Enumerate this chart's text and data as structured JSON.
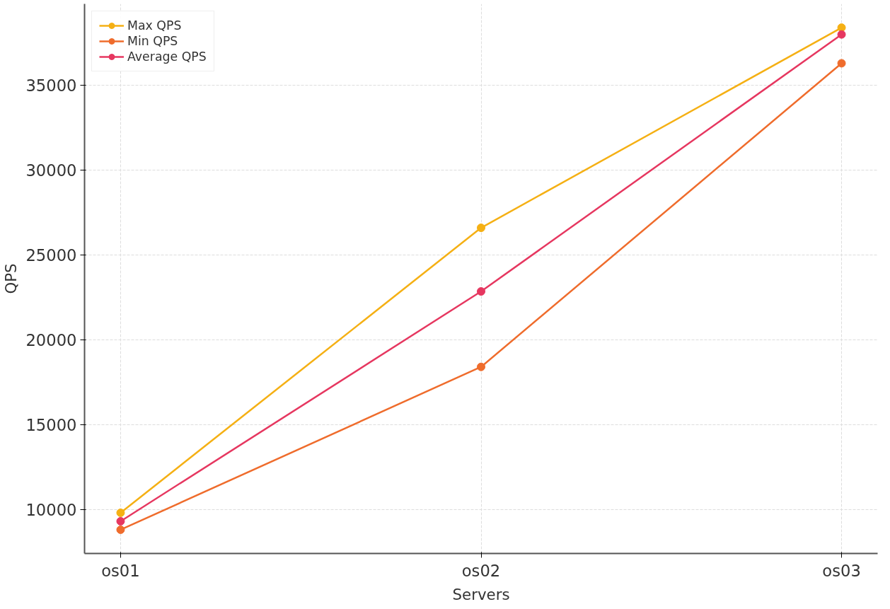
{
  "chart_data": {
    "type": "line",
    "xlabel": "Servers",
    "ylabel": "QPS",
    "categories": [
      "os01",
      "os02",
      "os03"
    ],
    "series": [
      {
        "name": "Max QPS",
        "color": "#f5b014",
        "values": [
          9800,
          26600,
          38400
        ]
      },
      {
        "name": "Min QPS",
        "color": "#ef6c2c",
        "values": [
          8800,
          18400,
          36300
        ]
      },
      {
        "name": "Average QPS",
        "color": "#e63760",
        "values": [
          9300,
          22850,
          38000
        ]
      }
    ],
    "ylim": [
      7400,
      39800
    ],
    "yticks": [
      10000,
      15000,
      20000,
      25000,
      30000,
      35000
    ],
    "grid": true,
    "legend": "top left",
    "marker": "circle",
    "line_style": "solid"
  }
}
